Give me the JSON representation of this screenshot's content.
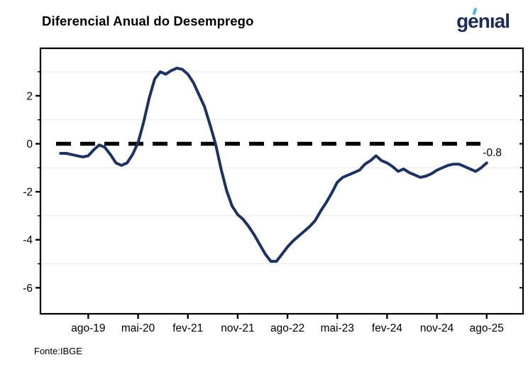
{
  "header": {
    "title": "Diferencial Anual do Desemprego"
  },
  "brand": {
    "wordmark": "genıal",
    "color": "#1c2b5e",
    "accent_color": "#3cb7e9"
  },
  "footer": {
    "source": "Fonte:IBGE"
  },
  "chart_data": {
    "type": "line",
    "title": "Diferencial Anual do Desemprego",
    "xlabel": "",
    "ylabel": "",
    "x": [
      "mar-19",
      "abr-19",
      "mai-19",
      "jun-19",
      "jul-19",
      "ago-19",
      "set-19",
      "out-19",
      "nov-19",
      "dez-19",
      "jan-20",
      "fev-20",
      "mar-20",
      "abr-20",
      "mai-20",
      "jun-20",
      "jul-20",
      "ago-20",
      "set-20",
      "out-20",
      "nov-20",
      "dez-20",
      "jan-21",
      "fev-21",
      "mar-21",
      "abr-21",
      "mai-21",
      "jun-21",
      "jul-21",
      "ago-21",
      "set-21",
      "out-21",
      "nov-21",
      "dez-21",
      "jan-22",
      "fev-22",
      "mar-22",
      "abr-22",
      "mai-22",
      "jun-22",
      "jul-22",
      "ago-22",
      "set-22",
      "out-22",
      "nov-22",
      "dez-22",
      "jan-23",
      "fev-23",
      "mar-23",
      "abr-23",
      "mai-23",
      "jun-23",
      "jul-23",
      "ago-23",
      "set-23",
      "out-23",
      "nov-23",
      "dez-23",
      "jan-24",
      "fev-24",
      "mar-24",
      "abr-24",
      "mai-24",
      "jun-24",
      "jul-24",
      "ago-24",
      "set-24",
      "out-24",
      "nov-24",
      "dez-24",
      "jan-25",
      "fev-25",
      "mar-25",
      "abr-25",
      "mai-25",
      "jun-25",
      "jul-25",
      "ago-25"
    ],
    "values": [
      -0.4,
      -0.4,
      -0.45,
      -0.5,
      -0.55,
      -0.5,
      -0.25,
      -0.05,
      -0.15,
      -0.45,
      -0.8,
      -0.9,
      -0.8,
      -0.45,
      0.05,
      0.9,
      1.9,
      2.7,
      3.0,
      2.9,
      3.05,
      3.15,
      3.1,
      2.9,
      2.55,
      2.05,
      1.55,
      0.8,
      0.0,
      -1.05,
      -1.95,
      -2.6,
      -2.95,
      -3.15,
      -3.45,
      -3.8,
      -4.2,
      -4.6,
      -4.9,
      -4.9,
      -4.6,
      -4.3,
      -4.05,
      -3.85,
      -3.65,
      -3.45,
      -3.2,
      -2.8,
      -2.45,
      -2.05,
      -1.6,
      -1.4,
      -1.3,
      -1.2,
      -1.1,
      -0.85,
      -0.7,
      -0.5,
      -0.7,
      -0.8,
      -0.95,
      -1.15,
      -1.05,
      -1.2,
      -1.3,
      -1.4,
      -1.35,
      -1.25,
      -1.1,
      -1.0,
      -0.9,
      -0.85,
      -0.85,
      -0.95,
      -1.05,
      -1.15,
      -1.0,
      -0.8
    ],
    "x_tick_labels": [
      "ago-19",
      "mai-20",
      "fev-21",
      "nov-21",
      "ago-22",
      "mai-23",
      "fev-24",
      "nov-24",
      "ago-25"
    ],
    "y_ticks_major": [
      2,
      0,
      -2,
      -4,
      -6
    ],
    "y_ticks_minor": [
      3,
      1,
      -1,
      -3,
      -5
    ],
    "ylim": [
      -7.1,
      4.0
    ],
    "reference_line_y": 0,
    "last_value_label": "-0.8",
    "grid": "horizontal-minor-only",
    "legend": "none",
    "colors": {
      "line": "#1a3365",
      "reference": "#000000",
      "grid": "#ececec",
      "axis": "#000000"
    }
  }
}
